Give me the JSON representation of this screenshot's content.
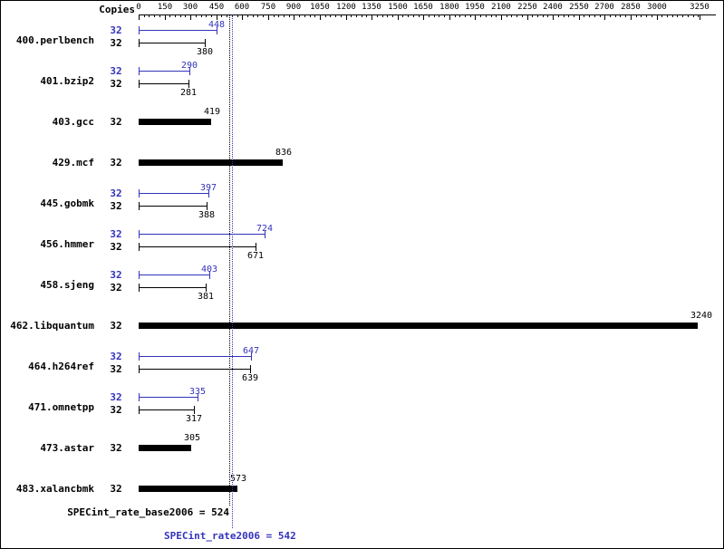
{
  "header": {
    "copies_label": "Copies"
  },
  "colors": {
    "peak": "#3333bb",
    "base": "#000000",
    "background": "#ffffff"
  },
  "chart_data": {
    "type": "bar",
    "orientation": "horizontal",
    "legend": "blue bars = peak (SPECint_rate2006), black bars = base (SPECint_rate_base2006)",
    "x_axis": {
      "min": 0,
      "max": 3250,
      "major_ticks": [
        0,
        150,
        300,
        450,
        600,
        750,
        900,
        1050,
        1200,
        1350,
        1500,
        1650,
        1800,
        1950,
        2100,
        2250,
        2400,
        2550,
        2700,
        2850,
        3000,
        3250
      ],
      "minor_tick_step": 30
    },
    "benchmarks": [
      {
        "name": "400.perlbench",
        "copies": 32,
        "peak": 448,
        "base": 380
      },
      {
        "name": "401.bzip2",
        "copies": 32,
        "peak": 290,
        "base": 281
      },
      {
        "name": "403.gcc",
        "copies": 32,
        "peak": null,
        "base": 419
      },
      {
        "name": "429.mcf",
        "copies": 32,
        "peak": null,
        "base": 836
      },
      {
        "name": "445.gobmk",
        "copies": 32,
        "peak": 397,
        "base": 388
      },
      {
        "name": "456.hmmer",
        "copies": 32,
        "peak": 724,
        "base": 671
      },
      {
        "name": "458.sjeng",
        "copies": 32,
        "peak": 403,
        "base": 381
      },
      {
        "name": "462.libquantum",
        "copies": 32,
        "peak": null,
        "base": 3240
      },
      {
        "name": "464.h264ref",
        "copies": 32,
        "peak": 647,
        "base": 639
      },
      {
        "name": "471.omnetpp",
        "copies": 32,
        "peak": 335,
        "base": 317
      },
      {
        "name": "473.astar",
        "copies": 32,
        "peak": null,
        "base": 305
      },
      {
        "name": "483.xalancbmk",
        "copies": 32,
        "peak": null,
        "base": 573
      }
    ],
    "reference_lines": [
      {
        "name": "base",
        "value": 524
      },
      {
        "name": "peak",
        "value": 542
      }
    ]
  },
  "summary": {
    "base_label": "SPECint_rate_base2006 = 524",
    "peak_label": "SPECint_rate2006 = 542",
    "base_value": 524,
    "peak_value": 542
  }
}
